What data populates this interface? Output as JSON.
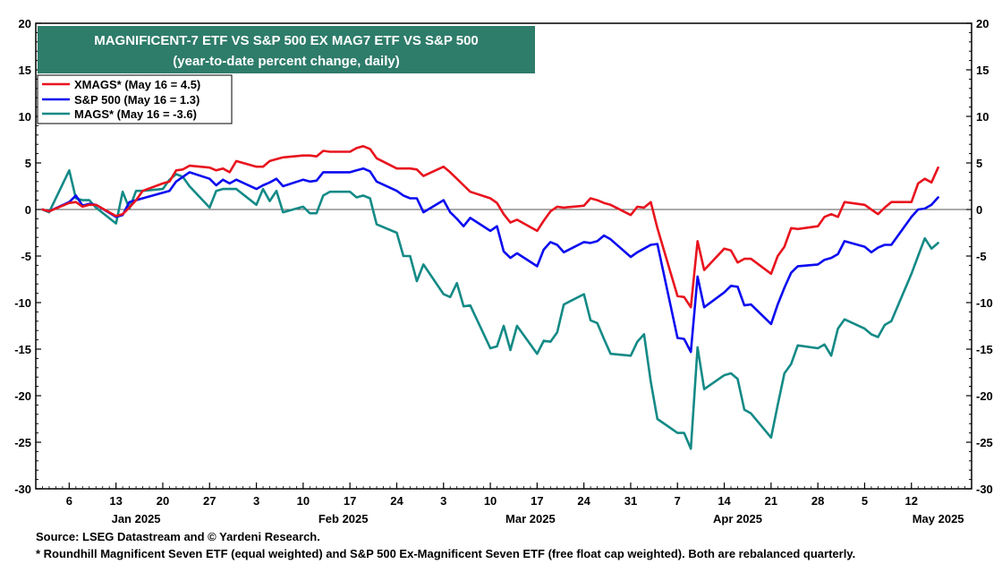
{
  "chart_data": {
    "type": "line",
    "title": "MAGNIFICENT-7 ETF VS S&P 500 EX MAG7 ETF VS S&P 500",
    "subtitle": "(year-to-date percent change, daily)",
    "ylim": [
      -30,
      20
    ],
    "yticks": [
      20,
      15,
      10,
      5,
      0,
      -5,
      -10,
      -15,
      -20,
      -25,
      -30
    ],
    "day_ticks": [
      {
        "label": "6",
        "day": 6
      },
      {
        "label": "13",
        "day": 13
      },
      {
        "label": "20",
        "day": 20
      },
      {
        "label": "27",
        "day": 27
      },
      {
        "label": "3",
        "day": 34
      },
      {
        "label": "10",
        "day": 41
      },
      {
        "label": "17",
        "day": 48
      },
      {
        "label": "24",
        "day": 55
      },
      {
        "label": "3",
        "day": 62
      },
      {
        "label": "10",
        "day": 69
      },
      {
        "label": "17",
        "day": 76
      },
      {
        "label": "24",
        "day": 83
      },
      {
        "label": "31",
        "day": 90
      },
      {
        "label": "7",
        "day": 97
      },
      {
        "label": "14",
        "day": 104
      },
      {
        "label": "21",
        "day": 111
      },
      {
        "label": "28",
        "day": 118
      },
      {
        "label": "5",
        "day": 125
      },
      {
        "label": "12",
        "day": 132
      }
    ],
    "month_labels": [
      {
        "label": "Jan 2025",
        "day": 16
      },
      {
        "label": "Feb 2025",
        "day": 47
      },
      {
        "label": "Mar 2025",
        "day": 75
      },
      {
        "label": "Apr 2025",
        "day": 106
      },
      {
        "label": "May 2025",
        "day": 136
      }
    ],
    "x_domain": [
      1,
      141
    ],
    "days": [
      2,
      3,
      6,
      7,
      8,
      9,
      10,
      13,
      14,
      15,
      16,
      17,
      20,
      21,
      22,
      23,
      24,
      27,
      28,
      29,
      30,
      31,
      34,
      35,
      36,
      37,
      38,
      41,
      42,
      43,
      44,
      45,
      48,
      49,
      50,
      51,
      52,
      55,
      56,
      57,
      58,
      59,
      62,
      63,
      64,
      65,
      66,
      69,
      70,
      71,
      72,
      73,
      76,
      77,
      78,
      79,
      80,
      83,
      84,
      85,
      86,
      87,
      90,
      91,
      92,
      93,
      94,
      97,
      98,
      99,
      100,
      101,
      104,
      105,
      106,
      107,
      108,
      111,
      112,
      113,
      114,
      115,
      118,
      119,
      120,
      121,
      122,
      125,
      126,
      127,
      128,
      129,
      132,
      133,
      134,
      135,
      136
    ],
    "series": [
      {
        "name": "XMAGS*",
        "legend": "XMAGS* (May 16 = 4.5)",
        "color": "#e8141e",
        "values": [
          0.0,
          -0.2,
          0.7,
          0.8,
          0.3,
          0.5,
          0.5,
          -0.7,
          -0.5,
          0.2,
          1.0,
          2.0,
          2.8,
          3.0,
          4.2,
          4.3,
          4.7,
          4.5,
          4.2,
          4.4,
          4.0,
          5.2,
          4.6,
          4.6,
          5.2,
          5.4,
          5.6,
          5.8,
          5.8,
          5.7,
          6.3,
          6.2,
          6.2,
          6.6,
          6.8,
          6.5,
          5.5,
          4.4,
          4.4,
          4.4,
          4.3,
          3.6,
          4.6,
          4.0,
          3.3,
          2.6,
          1.9,
          1.2,
          0.7,
          -0.5,
          -1.4,
          -1.1,
          -2.3,
          -1.2,
          -0.2,
          0.3,
          0.2,
          0.4,
          1.2,
          1.0,
          0.7,
          0.5,
          -0.6,
          0.3,
          0.2,
          0.8,
          -2.0,
          -9.3,
          -9.4,
          -10.5,
          -3.4,
          -6.5,
          -4.2,
          -4.4,
          -5.7,
          -5.3,
          -5.3,
          -6.9,
          -5.0,
          -4.0,
          -2.0,
          -2.1,
          -1.8,
          -0.8,
          -0.5,
          -0.8,
          0.8,
          0.5,
          0.0,
          -0.5,
          0.2,
          0.8,
          0.8,
          2.8,
          3.3,
          2.9,
          4.5
        ]
      },
      {
        "name": "S&P 500",
        "legend": "S&P 500 (May 16 = 1.3)",
        "color": "#0b0bf0",
        "values": [
          0.0,
          -0.2,
          0.8,
          1.5,
          0.4,
          0.6,
          0.5,
          -0.8,
          -0.6,
          0.8,
          1.0,
          1.2,
          1.8,
          2.0,
          3.0,
          3.5,
          4.0,
          3.3,
          2.6,
          3.2,
          2.8,
          3.2,
          2.2,
          2.6,
          2.9,
          3.3,
          2.5,
          3.2,
          3.0,
          3.1,
          4.0,
          4.0,
          4.0,
          4.2,
          4.4,
          4.1,
          3.0,
          2.0,
          1.5,
          1.2,
          1.2,
          -0.3,
          1.0,
          -0.3,
          -1.0,
          -1.8,
          -0.9,
          -2.3,
          -1.8,
          -4.5,
          -5.2,
          -4.7,
          -6.1,
          -4.3,
          -3.5,
          -3.8,
          -4.6,
          -3.5,
          -3.6,
          -3.4,
          -2.8,
          -3.2,
          -5.1,
          -4.6,
          -4.2,
          -3.8,
          -3.7,
          -13.8,
          -13.9,
          -15.3,
          -7.2,
          -10.5,
          -8.9,
          -8.2,
          -8.3,
          -10.3,
          -10.2,
          -12.3,
          -10.2,
          -8.4,
          -6.8,
          -6.1,
          -5.9,
          -5.4,
          -5.2,
          -4.8,
          -3.4,
          -4.0,
          -4.6,
          -4.1,
          -3.8,
          -3.8,
          -0.8,
          0.0,
          0.1,
          0.5,
          1.3
        ]
      },
      {
        "name": "MAGS*",
        "legend": "MAGS* (May 16 = -3.6)",
        "color": "#138a86",
        "values": [
          0.0,
          -0.3,
          4.2,
          1.2,
          1.0,
          1.0,
          0.2,
          -1.5,
          1.9,
          0.1,
          2.0,
          2.0,
          2.2,
          3.2,
          3.8,
          3.5,
          2.5,
          0.2,
          2.0,
          2.2,
          2.2,
          2.2,
          0.5,
          2.2,
          0.9,
          2.0,
          -0.3,
          0.3,
          -0.4,
          -0.4,
          1.5,
          1.9,
          1.9,
          1.3,
          1.5,
          1.2,
          -1.6,
          -2.5,
          -5.0,
          -5.0,
          -7.7,
          -5.9,
          -9.1,
          -9.4,
          -7.9,
          -10.4,
          -10.3,
          -14.9,
          -14.7,
          -12.5,
          -15.1,
          -12.5,
          -15.5,
          -14.1,
          -14.2,
          -13.2,
          -10.2,
          -9.1,
          -11.9,
          -12.2,
          -13.9,
          -15.5,
          -15.7,
          -14.2,
          -13.4,
          -18.5,
          -22.5,
          -24.0,
          -24.0,
          -25.7,
          -14.8,
          -19.3,
          -17.8,
          -17.6,
          -18.2,
          -21.5,
          -21.9,
          -24.5,
          -21.0,
          -17.6,
          -16.6,
          -14.6,
          -14.9,
          -14.5,
          -15.7,
          -12.8,
          -11.8,
          -12.8,
          -13.4,
          -13.7,
          -12.4,
          -12.0,
          -6.9,
          -5.0,
          -3.1,
          -4.2,
          -3.6
        ]
      }
    ]
  },
  "footer": {
    "source": "Source: LSEG Datastream and © Yardeni Research.",
    "note": "* Roundhill Magnificent Seven ETF (equal weighted) and S&P 500 Ex-Magnificent Seven ETF (free float cap weighted). Both are rebalanced quarterly."
  }
}
